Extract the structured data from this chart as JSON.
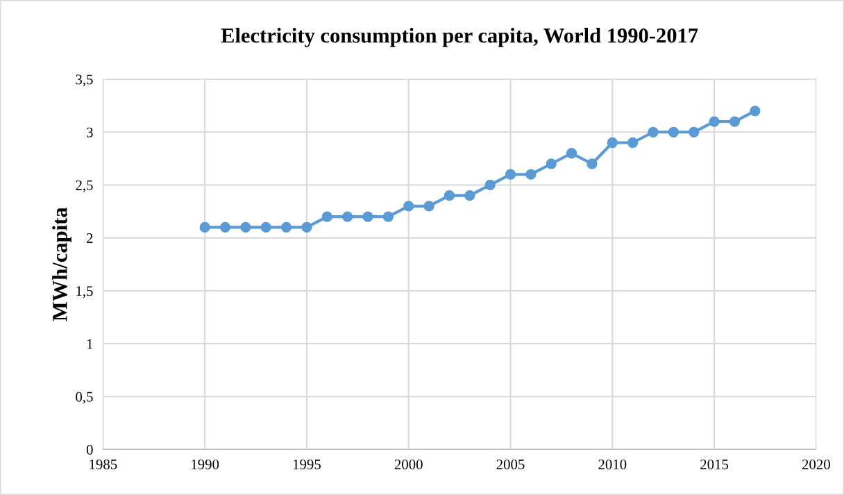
{
  "chart_data": {
    "type": "line",
    "title": "Electricity consumption per capita, World 1990-2017",
    "ylabel": "MWh/capita",
    "x": [
      1990,
      1991,
      1992,
      1993,
      1994,
      1995,
      1996,
      1997,
      1998,
      1999,
      2000,
      2001,
      2002,
      2003,
      2004,
      2005,
      2006,
      2007,
      2008,
      2009,
      2010,
      2011,
      2012,
      2013,
      2014,
      2015,
      2016,
      2017
    ],
    "series": [
      {
        "color": "#5b9bd5",
        "values": [
          2.1,
          2.1,
          2.1,
          2.1,
          2.1,
          2.1,
          2.2,
          2.2,
          2.2,
          2.2,
          2.3,
          2.3,
          2.4,
          2.4,
          2.5,
          2.6,
          2.6,
          2.7,
          2.8,
          2.7,
          2.9,
          2.9,
          3.0,
          3.0,
          3.0,
          3.1,
          3.1,
          3.2
        ]
      }
    ],
    "xlim": [
      1985,
      2020
    ],
    "xticks": [
      1985,
      1990,
      1995,
      2000,
      2005,
      2010,
      2015,
      2020
    ],
    "ylim": [
      0,
      3.5
    ],
    "yticks": [
      0,
      {
        "value": 0.5,
        "label": "0,5"
      },
      1,
      {
        "value": 1.5,
        "label": "1,5"
      },
      2,
      {
        "value": 2.5,
        "label": "2,5"
      },
      3,
      {
        "value": 3.5,
        "label": "3,5"
      }
    ],
    "grid": true,
    "marker": "circle",
    "line_style": "solid"
  }
}
